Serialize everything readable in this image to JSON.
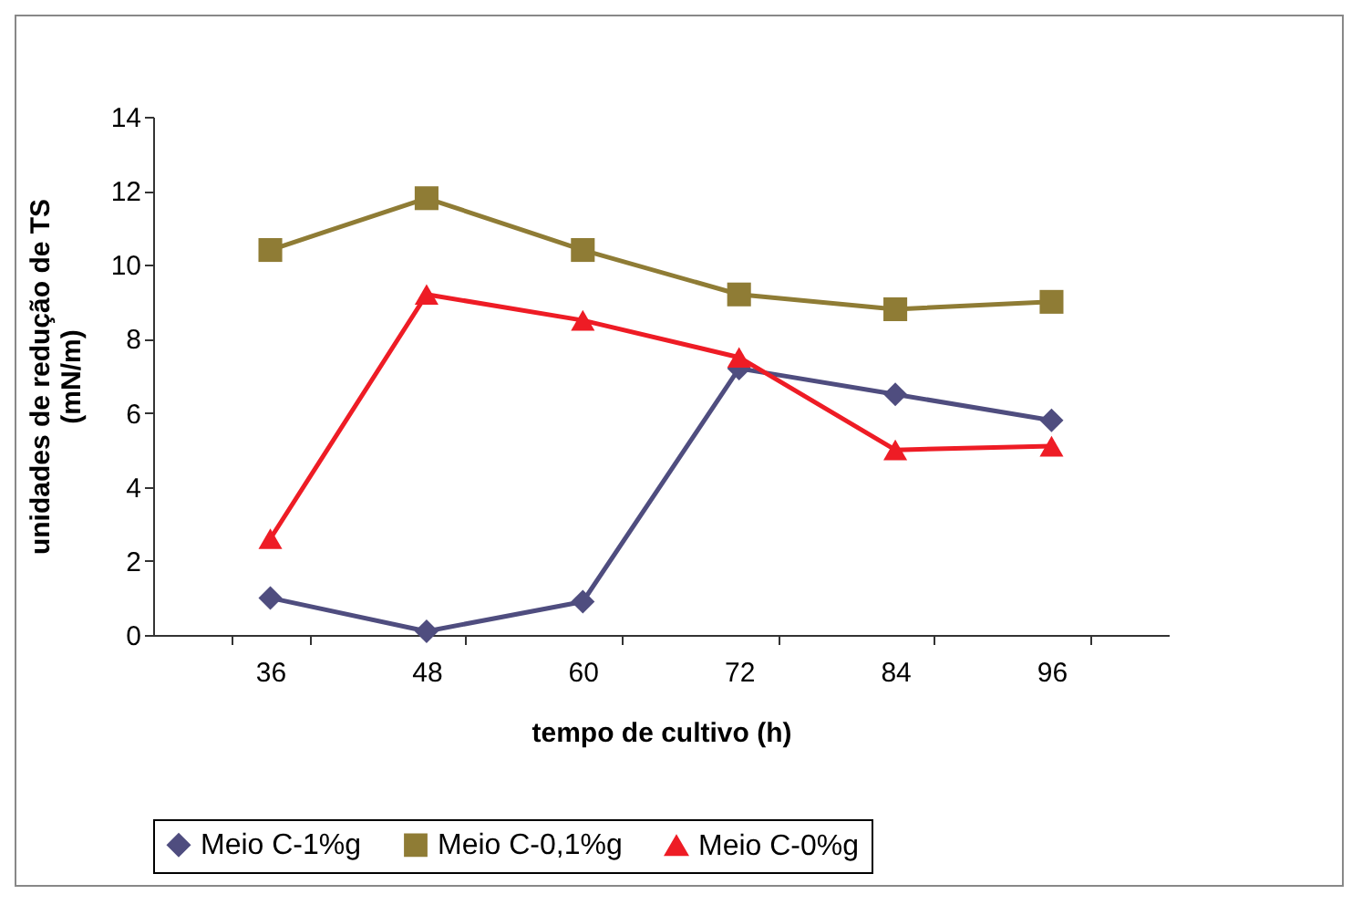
{
  "chart_data": {
    "type": "line",
    "xlabel": "tempo de cultivo (h)",
    "ylabel": "unidades de redução de TS\n(mN/m)",
    "categories": [
      "36",
      "48",
      "60",
      "72",
      "84",
      "96"
    ],
    "series": [
      {
        "name": "Meio C-1%g",
        "color": "#4f4d7f",
        "marker": "diamond",
        "values": [
          1.0,
          0.1,
          0.9,
          7.2,
          6.5,
          5.8
        ]
      },
      {
        "name": "Meio C-0,1%g",
        "color": "#8f7c35",
        "marker": "square",
        "values": [
          10.4,
          11.8,
          10.4,
          9.2,
          8.8,
          9.0
        ]
      },
      {
        "name": "Meio C-0%g",
        "color": "#ee1c25",
        "marker": "triangle",
        "values": [
          2.6,
          9.2,
          8.5,
          7.5,
          5.0,
          5.1
        ]
      }
    ],
    "ylim": [
      0,
      14
    ],
    "yticks": [
      0,
      2,
      4,
      6,
      8,
      10,
      12,
      14
    ],
    "grid": false,
    "legend": "bottom",
    "line_style": "solid"
  }
}
